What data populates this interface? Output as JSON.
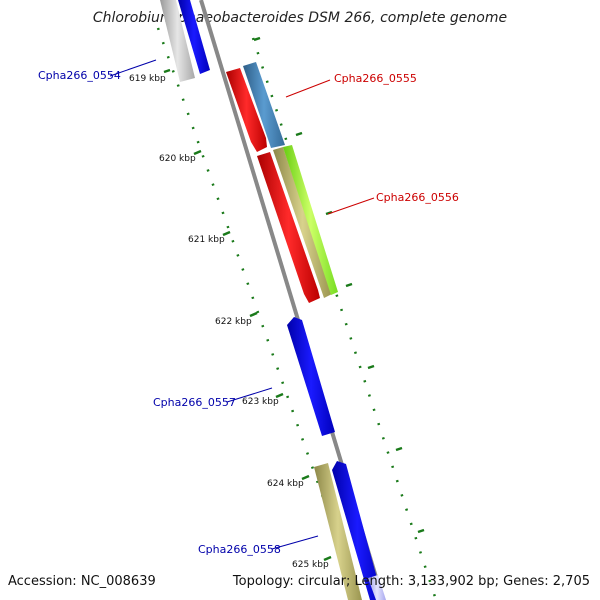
{
  "title": "Chlorobium phaeobacteroides DSM 266, complete genome",
  "footer": {
    "accession": "Accession: NC_008639",
    "summary": "Topology: circular; Length: 3,133,902 bp; Genes: 2,705"
  },
  "ticks": [
    {
      "label": "619 kbp"
    },
    {
      "label": "620 kbp"
    },
    {
      "label": "621 kbp"
    },
    {
      "label": "622 kbp"
    },
    {
      "label": "623 kbp"
    },
    {
      "label": "624 kbp"
    },
    {
      "label": "625 kbp"
    }
  ],
  "genes": [
    {
      "label": "Cpha266_0554",
      "color": "#0000aa"
    },
    {
      "label": "Cpha266_0555",
      "color": "#cc0000"
    },
    {
      "label": "Cpha266_0556",
      "color": "#cc0000"
    },
    {
      "label": "Cpha266_0557",
      "color": "#0000aa"
    },
    {
      "label": "Cpha266_0558",
      "color": "#0000aa"
    }
  ],
  "colors": {
    "backbone": "#888888",
    "tick": "#1a7a1a",
    "red_feature": "#ff0000",
    "blue_feature": "#0000ff",
    "steelblue_feature": "#4682b4",
    "khaki_feature": "#bdb76b",
    "lime_feature": "#99ff33",
    "gray_feature": "#c0c0c0"
  }
}
